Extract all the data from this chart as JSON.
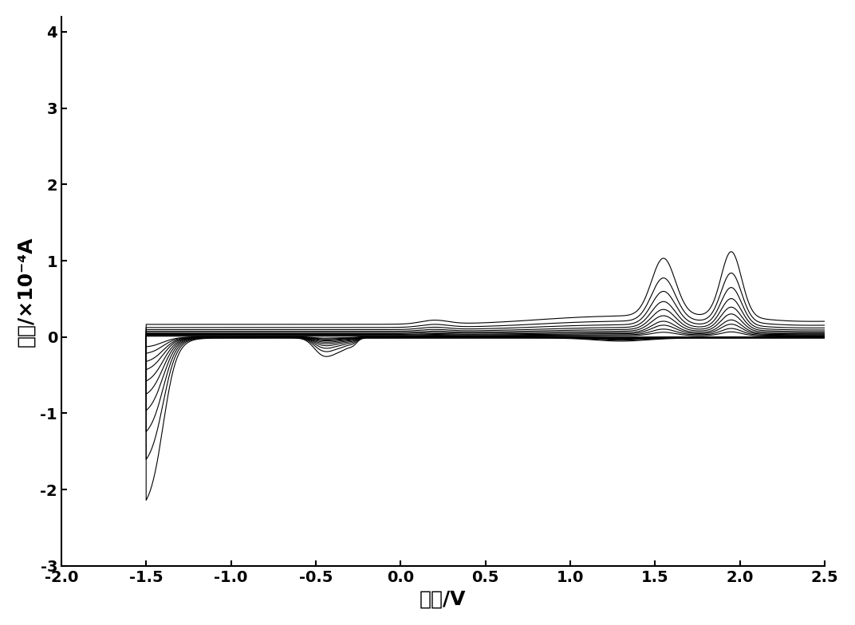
{
  "xlim": [
    -2.0,
    2.5
  ],
  "ylim": [
    -3.0,
    4.2
  ],
  "xticks": [
    -2.0,
    -1.5,
    -1.0,
    -0.5,
    0.0,
    0.5,
    1.0,
    1.5,
    2.0,
    2.5
  ],
  "yticks": [
    -3,
    -2,
    -1,
    0,
    1,
    2,
    3,
    4
  ],
  "xlabel": "电势/V",
  "ylabel": "电流/×10⁻⁴A",
  "line_color": "#000000",
  "background_color": "#ffffff",
  "xlabel_fontsize": 18,
  "ylabel_fontsize": 18,
  "tick_fontsize": 14,
  "n_curves": 10
}
